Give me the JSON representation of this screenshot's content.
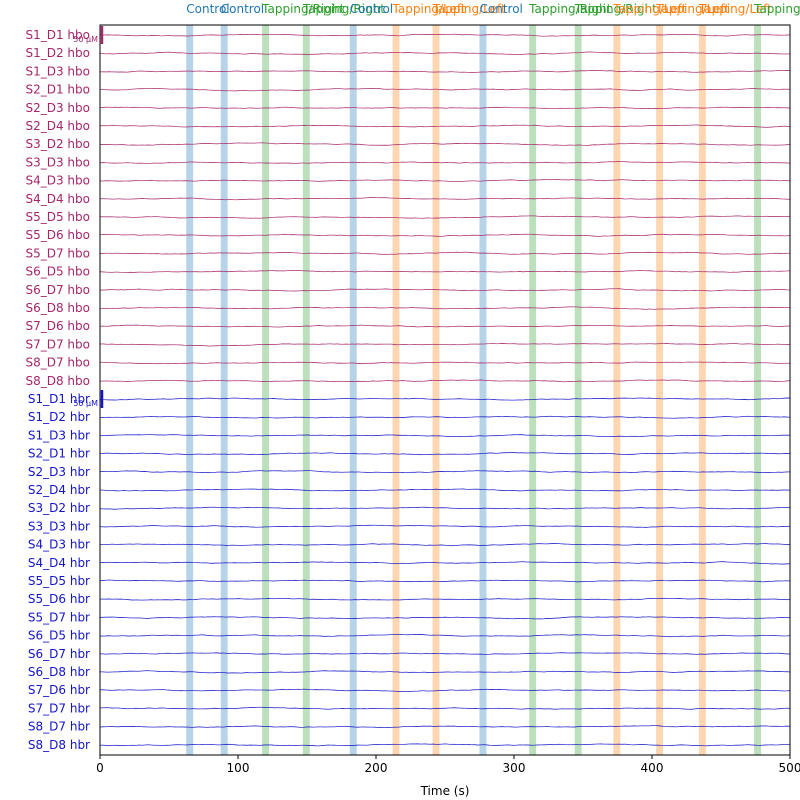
{
  "chart_data": {
    "type": "line",
    "xlabel": "Time (s)",
    "xlim": [
      0,
      500
    ],
    "x_ticks": [
      0,
      100,
      200,
      300,
      400,
      500
    ],
    "scale_labels": [
      "50 µM",
      "50 µM"
    ],
    "colors": {
      "hbo": "#a6266a",
      "hbr": "#1515c8",
      "Control": "#1f77b4",
      "Tapping/Left": "#ff7f0e",
      "Tapping/Right": "#2ca02c"
    },
    "channels": [
      {
        "name": "S1_D1 hbo",
        "type": "hbo"
      },
      {
        "name": "S1_D2 hbo",
        "type": "hbo"
      },
      {
        "name": "S1_D3 hbo",
        "type": "hbo"
      },
      {
        "name": "S2_D1 hbo",
        "type": "hbo"
      },
      {
        "name": "S2_D3 hbo",
        "type": "hbo"
      },
      {
        "name": "S2_D4 hbo",
        "type": "hbo"
      },
      {
        "name": "S3_D2 hbo",
        "type": "hbo"
      },
      {
        "name": "S3_D3 hbo",
        "type": "hbo"
      },
      {
        "name": "S4_D3 hbo",
        "type": "hbo"
      },
      {
        "name": "S4_D4 hbo",
        "type": "hbo"
      },
      {
        "name": "S5_D5 hbo",
        "type": "hbo"
      },
      {
        "name": "S5_D6 hbo",
        "type": "hbo"
      },
      {
        "name": "S5_D7 hbo",
        "type": "hbo"
      },
      {
        "name": "S6_D5 hbo",
        "type": "hbo"
      },
      {
        "name": "S6_D7 hbo",
        "type": "hbo"
      },
      {
        "name": "S6_D8 hbo",
        "type": "hbo"
      },
      {
        "name": "S7_D6 hbo",
        "type": "hbo"
      },
      {
        "name": "S7_D7 hbo",
        "type": "hbo"
      },
      {
        "name": "S8_D7 hbo",
        "type": "hbo"
      },
      {
        "name": "S8_D8 hbo",
        "type": "hbo"
      },
      {
        "name": "S1_D1 hbr",
        "type": "hbr"
      },
      {
        "name": "S1_D2 hbr",
        "type": "hbr"
      },
      {
        "name": "S1_D3 hbr",
        "type": "hbr"
      },
      {
        "name": "S2_D1 hbr",
        "type": "hbr"
      },
      {
        "name": "S2_D3 hbr",
        "type": "hbr"
      },
      {
        "name": "S2_D4 hbr",
        "type": "hbr"
      },
      {
        "name": "S3_D2 hbr",
        "type": "hbr"
      },
      {
        "name": "S3_D3 hbr",
        "type": "hbr"
      },
      {
        "name": "S4_D3 hbr",
        "type": "hbr"
      },
      {
        "name": "S4_D4 hbr",
        "type": "hbr"
      },
      {
        "name": "S5_D5 hbr",
        "type": "hbr"
      },
      {
        "name": "S5_D6 hbr",
        "type": "hbr"
      },
      {
        "name": "S5_D7 hbr",
        "type": "hbr"
      },
      {
        "name": "S6_D5 hbr",
        "type": "hbr"
      },
      {
        "name": "S6_D7 hbr",
        "type": "hbr"
      },
      {
        "name": "S6_D8 hbr",
        "type": "hbr"
      },
      {
        "name": "S7_D6 hbr",
        "type": "hbr"
      },
      {
        "name": "S7_D7 hbr",
        "type": "hbr"
      },
      {
        "name": "S8_D7 hbr",
        "type": "hbr"
      },
      {
        "name": "S8_D8 hbr",
        "type": "hbr"
      }
    ],
    "annotations": [
      {
        "label": "Control",
        "onset": 62.5,
        "duration": 5
      },
      {
        "label": "Control",
        "onset": 87.5,
        "duration": 5
      },
      {
        "label": "Tapping/Right",
        "onset": 117.5,
        "duration": 5
      },
      {
        "label": "Tapping/Right",
        "onset": 147,
        "duration": 5
      },
      {
        "label": "Control",
        "onset": 181,
        "duration": 5
      },
      {
        "label": "Tapping/Left",
        "onset": 212,
        "duration": 5
      },
      {
        "label": "Tapping/Left",
        "onset": 241,
        "duration": 5
      },
      {
        "label": "Control",
        "onset": 275,
        "duration": 5
      },
      {
        "label": "Tapping/Right",
        "onset": 311,
        "duration": 5
      },
      {
        "label": "Tapping/Right",
        "onset": 344,
        "duration": 5
      },
      {
        "label": "Tapping/Left",
        "onset": 372,
        "duration": 5
      },
      {
        "label": "Tapping/Left",
        "onset": 403,
        "duration": 5
      },
      {
        "label": "Tapping/Left",
        "onset": 434,
        "duration": 5
      },
      {
        "label": "Tapping/Right",
        "onset": 474,
        "duration": 5
      }
    ]
  }
}
